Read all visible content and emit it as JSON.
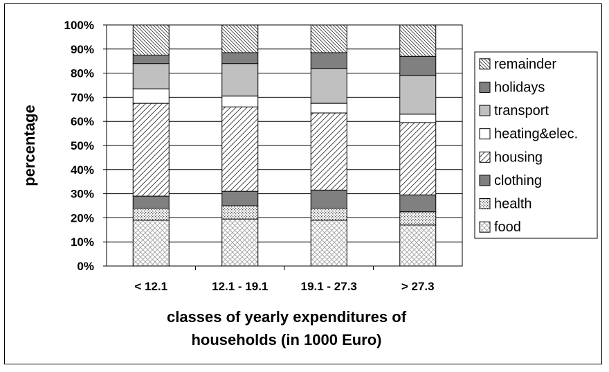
{
  "chart_data": {
    "type": "bar",
    "stacked": true,
    "normalized": true,
    "categories": [
      "< 12.1",
      "12.1 - 19.1",
      "19.1 - 27.3",
      "> 27.3"
    ],
    "ylabel": "percentage",
    "xlabel_lines": [
      "classes of yearly expenditures of",
      "households (in 1000 Euro)"
    ],
    "ylim": [
      0,
      100
    ],
    "yticks": [
      "0%",
      "10%",
      "20%",
      "30%",
      "40%",
      "50%",
      "60%",
      "70%",
      "80%",
      "90%",
      "100%"
    ],
    "grid": true,
    "legend_position": "right",
    "series": [
      {
        "name": "food",
        "pattern": "crosshatch",
        "values": [
          19,
          19.5,
          19,
          17
        ]
      },
      {
        "name": "health",
        "pattern": "dots",
        "values": [
          5,
          5.5,
          5,
          5.5
        ]
      },
      {
        "name": "clothing",
        "pattern": "dark-gray",
        "values": [
          5,
          6,
          7.5,
          7
        ]
      },
      {
        "name": "housing",
        "pattern": "diagonal",
        "values": [
          38.5,
          35,
          32,
          30
        ]
      },
      {
        "name": "heating&elec.",
        "pattern": "white",
        "values": [
          6,
          4.5,
          4,
          3.5
        ]
      },
      {
        "name": "transport",
        "pattern": "light-gray",
        "values": [
          10.5,
          13.5,
          14.5,
          16
        ]
      },
      {
        "name": "holidays",
        "pattern": "mid-gray",
        "values": [
          3.5,
          4.5,
          6.5,
          8
        ]
      },
      {
        "name": "remainder",
        "pattern": "back-diagonal",
        "values": [
          12.5,
          11.5,
          11.5,
          13
        ]
      }
    ]
  }
}
